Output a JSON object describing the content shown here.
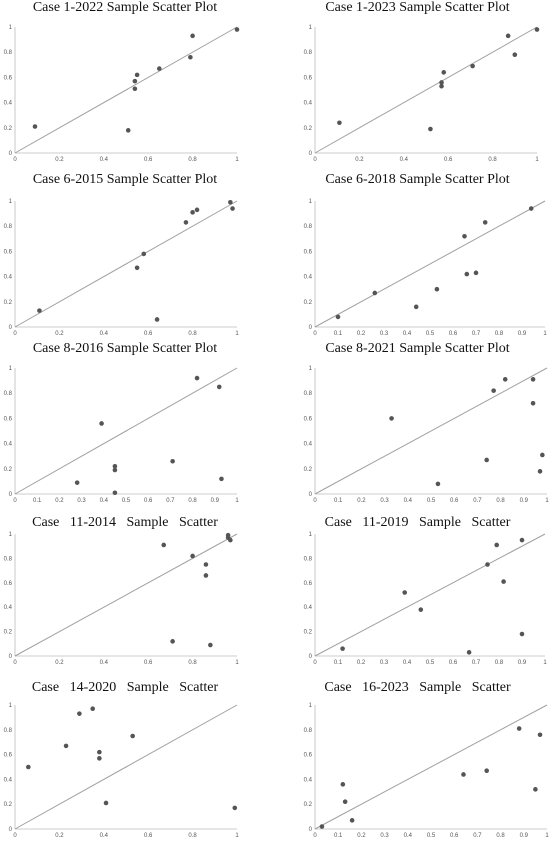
{
  "colors": {
    "point": "#555555",
    "diagonal": "#a0a0a0",
    "axis": "#bbbbbb",
    "tick": "#555555"
  },
  "chart_data": [
    {
      "type": "scatter",
      "title": "Case 1-2022 Sample Scatter Plot",
      "xlim": [
        0,
        1
      ],
      "ylim": [
        0,
        1
      ],
      "x_ticks": [
        "0",
        "0.2",
        "0.4",
        "0.6",
        "0.8",
        "1"
      ],
      "y_ticks": [
        "0",
        "0.2",
        "0.4",
        "0.6",
        "0.8",
        "1"
      ],
      "reference_line": "y = x",
      "points": [
        [
          0.09,
          0.21
        ],
        [
          0.51,
          0.18
        ],
        [
          0.54,
          0.51
        ],
        [
          0.54,
          0.57
        ],
        [
          0.55,
          0.62
        ],
        [
          0.65,
          0.67
        ],
        [
          0.79,
          0.76
        ],
        [
          0.8,
          0.93
        ],
        [
          1.0,
          0.98
        ]
      ]
    },
    {
      "type": "scatter",
      "title": "Case 1-2023 Sample Scatter Plot",
      "xlim": [
        0,
        1
      ],
      "ylim": [
        0,
        1
      ],
      "x_ticks": [
        "0",
        "0.2",
        "0.4",
        "0.6",
        "0.8",
        "1"
      ],
      "y_ticks": [
        "0",
        "0.2",
        "0.4",
        "0.6",
        "0.8",
        "1"
      ],
      "reference_line": "y = x",
      "points": [
        [
          0.11,
          0.24
        ],
        [
          0.52,
          0.19
        ],
        [
          0.57,
          0.53
        ],
        [
          0.57,
          0.56
        ],
        [
          0.58,
          0.64
        ],
        [
          0.71,
          0.69
        ],
        [
          0.87,
          0.93
        ],
        [
          0.9,
          0.78
        ],
        [
          1.0,
          0.98
        ]
      ]
    },
    {
      "type": "scatter",
      "title": "Case 6-2015 Sample Scatter Plot",
      "xlim": [
        0,
        1
      ],
      "ylim": [
        0,
        1
      ],
      "x_ticks": [
        "0",
        "0.2",
        "0.4",
        "0.6",
        "0.8",
        "1"
      ],
      "y_ticks": [
        "0",
        "0.2",
        "0.4",
        "0.6",
        "0.8",
        "1"
      ],
      "reference_line": "y = x",
      "points": [
        [
          0.11,
          0.13
        ],
        [
          0.55,
          0.47
        ],
        [
          0.58,
          0.58
        ],
        [
          0.64,
          0.06
        ],
        [
          0.77,
          0.83
        ],
        [
          0.8,
          0.91
        ],
        [
          0.82,
          0.93
        ],
        [
          0.97,
          0.99
        ],
        [
          0.98,
          0.94
        ]
      ]
    },
    {
      "type": "scatter",
      "title": "Case 6-2018 Sample Scatter Plot",
      "xlim": [
        0,
        1
      ],
      "ylim": [
        0,
        1
      ],
      "x_ticks": [
        "0",
        "0.1",
        "0.2",
        "0.3",
        "0.4",
        "0.5",
        "0.6",
        "0.7",
        "0.8",
        "0.9",
        "1"
      ],
      "y_ticks": [
        "0",
        "0.2",
        "0.4",
        "0.6",
        "0.8",
        "1"
      ],
      "reference_line": "y = x",
      "points": [
        [
          0.1,
          0.08
        ],
        [
          0.26,
          0.27
        ],
        [
          0.44,
          0.16
        ],
        [
          0.53,
          0.3
        ],
        [
          0.65,
          0.72
        ],
        [
          0.66,
          0.42
        ],
        [
          0.7,
          0.43
        ],
        [
          0.74,
          0.83
        ],
        [
          0.94,
          0.94
        ]
      ]
    },
    {
      "type": "scatter",
      "title": "Case 8-2016 Sample Scatter Plot",
      "xlim": [
        0,
        1
      ],
      "ylim": [
        0,
        1
      ],
      "x_ticks": [
        "0",
        "0.1",
        "0.2",
        "0.3",
        "0.4",
        "0.5",
        "0.6",
        "0.7",
        "0.8",
        "0.9",
        "1"
      ],
      "y_ticks": [
        "0",
        "0.2",
        "0.4",
        "0.6",
        "0.8",
        "1"
      ],
      "reference_line": "y = x",
      "points": [
        [
          0.28,
          0.09
        ],
        [
          0.39,
          0.56
        ],
        [
          0.45,
          0.01
        ],
        [
          0.45,
          0.19
        ],
        [
          0.45,
          0.22
        ],
        [
          0.71,
          0.26
        ],
        [
          0.82,
          0.92
        ],
        [
          0.92,
          0.85
        ],
        [
          0.93,
          0.12
        ]
      ]
    },
    {
      "type": "scatter",
      "title": "Case 8-2021 Sample Scatter Plot",
      "xlim": [
        0,
        1
      ],
      "ylim": [
        0,
        1
      ],
      "x_ticks": [
        "0",
        "0.1",
        "0.2",
        "0.3",
        "0.4",
        "0.5",
        "0.6",
        "0.7",
        "0.8",
        "0.9",
        "1"
      ],
      "y_ticks": [
        "0",
        "0.2",
        "0.4",
        "0.6",
        "0.8",
        "1"
      ],
      "reference_line": "y = x",
      "points": [
        [
          0.33,
          0.6
        ],
        [
          0.53,
          0.08
        ],
        [
          0.74,
          0.27
        ],
        [
          0.77,
          0.82
        ],
        [
          0.82,
          0.91
        ],
        [
          0.94,
          0.91
        ],
        [
          0.94,
          0.72
        ],
        [
          0.97,
          0.18
        ],
        [
          0.98,
          0.31
        ]
      ]
    },
    {
      "type": "scatter",
      "title": "Case   11-2014   Sample   Scatter",
      "xlim": [
        0,
        1
      ],
      "ylim": [
        0,
        1
      ],
      "x_ticks": [
        "0",
        "0.2",
        "0.4",
        "0.6",
        "0.8",
        "1"
      ],
      "y_ticks": [
        "0",
        "0.2",
        "0.4",
        "0.6",
        "0.8",
        "1"
      ],
      "reference_line": "y = x",
      "points": [
        [
          0.67,
          0.91
        ],
        [
          0.71,
          0.12
        ],
        [
          0.8,
          0.82
        ],
        [
          0.86,
          0.75
        ],
        [
          0.86,
          0.66
        ],
        [
          0.88,
          0.09
        ],
        [
          0.96,
          0.99
        ],
        [
          0.96,
          0.97
        ],
        [
          0.97,
          0.95
        ]
      ]
    },
    {
      "type": "scatter",
      "title": "Case   11-2019   Sample   Scatter",
      "xlim": [
        0,
        1
      ],
      "ylim": [
        0,
        1
      ],
      "x_ticks": [
        "0",
        "0.1",
        "0.2",
        "0.3",
        "0.4",
        "0.5",
        "0.6",
        "0.7",
        "0.8",
        "0.9",
        "1"
      ],
      "y_ticks": [
        "0",
        "0.2",
        "0.4",
        "0.6",
        "0.8",
        "1"
      ],
      "reference_line": "y = x",
      "points": [
        [
          0.12,
          0.06
        ],
        [
          0.39,
          0.52
        ],
        [
          0.46,
          0.38
        ],
        [
          0.67,
          0.03
        ],
        [
          0.75,
          0.75
        ],
        [
          0.79,
          0.91
        ],
        [
          0.82,
          0.61
        ],
        [
          0.9,
          0.95
        ],
        [
          0.9,
          0.18
        ]
      ]
    },
    {
      "type": "scatter",
      "title": "Case   14-2020   Sample   Scatter",
      "xlim": [
        0,
        1
      ],
      "ylim": [
        0,
        1
      ],
      "x_ticks": [
        "0",
        "0.2",
        "0.4",
        "0.6",
        "0.8",
        "1"
      ],
      "y_ticks": [
        "0",
        "0.2",
        "0.4",
        "0.6",
        "0.8",
        "1"
      ],
      "reference_line": "y = x",
      "points": [
        [
          0.06,
          0.5
        ],
        [
          0.23,
          0.67
        ],
        [
          0.29,
          0.93
        ],
        [
          0.35,
          0.97
        ],
        [
          0.38,
          0.62
        ],
        [
          0.38,
          0.57
        ],
        [
          0.41,
          0.21
        ],
        [
          0.53,
          0.75
        ],
        [
          0.99,
          0.17
        ]
      ]
    },
    {
      "type": "scatter",
      "title": "Case   16-2023   Sample   Scatter",
      "xlim": [
        0,
        1
      ],
      "ylim": [
        0,
        1
      ],
      "x_ticks": [
        "0",
        "0.1",
        "0.2",
        "0.3",
        "0.4",
        "0.5",
        "0.6",
        "0.7",
        "0.8",
        "0.9",
        "1"
      ],
      "y_ticks": [
        "0",
        "0.2",
        "0.4",
        "0.6",
        "0.8",
        "1"
      ],
      "reference_line": "y = x",
      "points": [
        [
          0.03,
          0.02
        ],
        [
          0.12,
          0.36
        ],
        [
          0.13,
          0.22
        ],
        [
          0.16,
          0.07
        ],
        [
          0.64,
          0.44
        ],
        [
          0.74,
          0.47
        ],
        [
          0.88,
          0.81
        ],
        [
          0.95,
          0.32
        ],
        [
          0.97,
          0.76
        ]
      ]
    }
  ]
}
